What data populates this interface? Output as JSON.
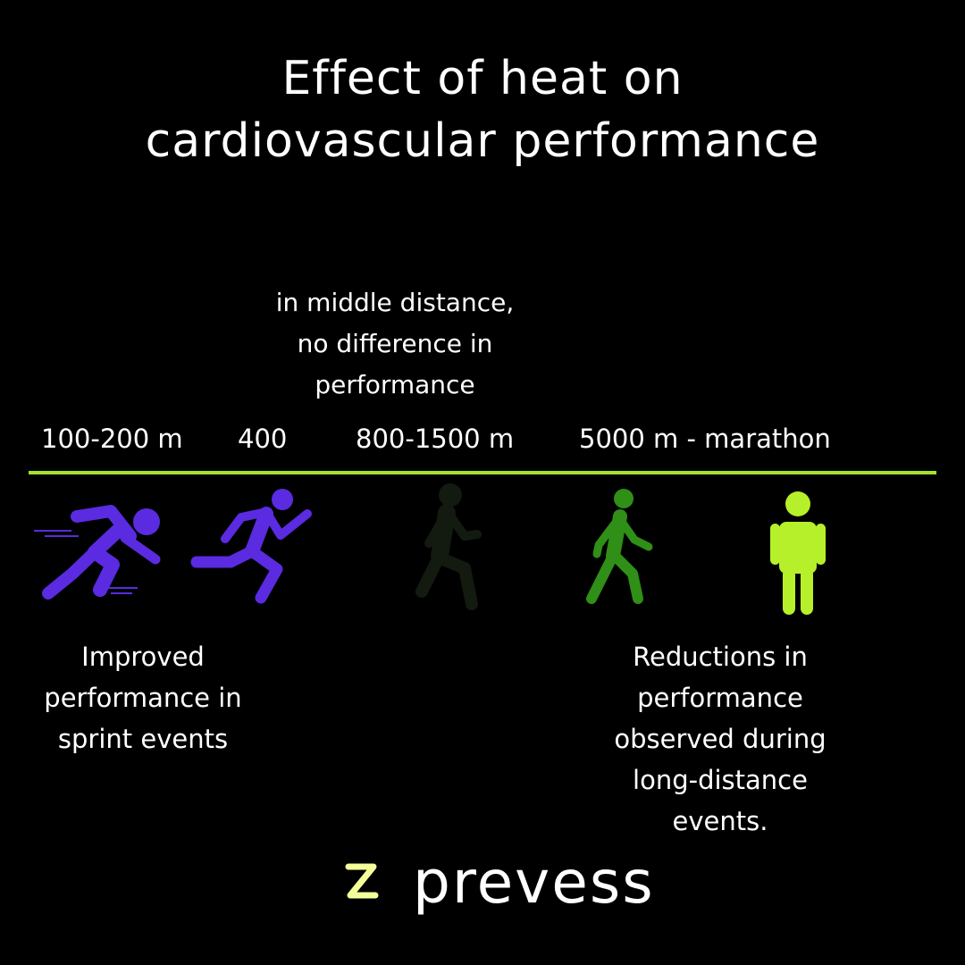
{
  "title": {
    "line1": "Effect of heat on",
    "line2": "cardiovascular performance"
  },
  "middle_note": [
    "in middle distance,",
    "no difference in",
    "performance"
  ],
  "distances": [
    "100-200 m",
    "400",
    "800-1500 m",
    "5000 m - marathon"
  ],
  "figures": [
    {
      "icon": "sprinting-runner-icon",
      "color": "#5a2be0"
    },
    {
      "icon": "running-person-icon",
      "color": "#5a2be0"
    },
    {
      "icon": "jogging-person-icon",
      "color": "#131a10"
    },
    {
      "icon": "walking-person-icon",
      "color": "#2f8f16"
    },
    {
      "icon": "standing-person-icon",
      "color": "#b6f02a"
    }
  ],
  "captions": {
    "sprint": [
      "Improved",
      "performance in",
      "sprint events"
    ],
    "long": [
      "Reductions in",
      "performance",
      "observed during",
      "long-distance",
      "events."
    ]
  },
  "brand": {
    "name": "prevess",
    "accent": "#a4e22c"
  },
  "divider_color": "#a4e22c"
}
